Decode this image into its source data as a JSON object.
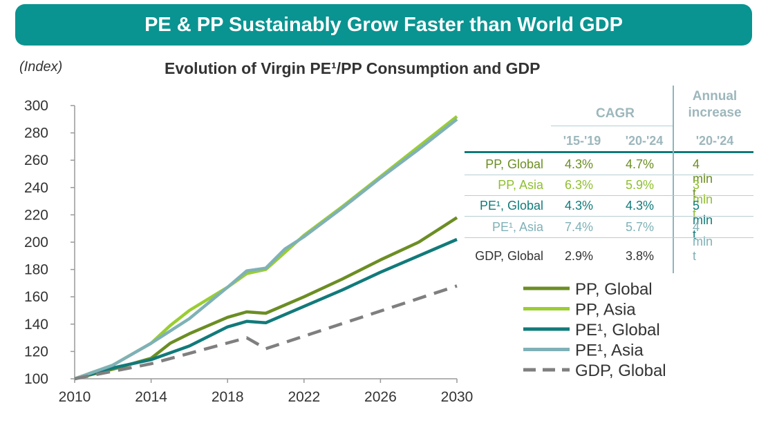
{
  "header": {
    "banner_title": "PE & PP Sustainably Grow Faster than World GDP"
  },
  "chart_data": {
    "type": "line",
    "title": "Evolution of Virgin PE¹/PP Consumption and GDP",
    "ylabel": "(Index)",
    "xlabel": "",
    "xlim": [
      2010,
      2030
    ],
    "ylim": [
      100,
      300
    ],
    "x_ticks": [
      "2010",
      "2014",
      "2018",
      "2022",
      "2026",
      "2030"
    ],
    "y_ticks": [
      "100",
      "120",
      "140",
      "160",
      "180",
      "200",
      "220",
      "240",
      "260",
      "280",
      "300"
    ],
    "grid": false,
    "legend_position": "bottom-right",
    "series": [
      {
        "name": "PP, Global",
        "color": "#6b8e23",
        "dash": false,
        "x": [
          2010,
          2012,
          2014,
          2015,
          2016,
          2018,
          2019,
          2020,
          2022,
          2024,
          2026,
          2028,
          2030
        ],
        "y": [
          100,
          107,
          115,
          126,
          133,
          145,
          149,
          148,
          160,
          173,
          187,
          200,
          218
        ]
      },
      {
        "name": "PP, Asia",
        "color": "#9acd32",
        "dash": false,
        "x": [
          2010,
          2012,
          2014,
          2015,
          2016,
          2018,
          2019,
          2020,
          2022,
          2024,
          2026,
          2028,
          2030
        ],
        "y": [
          100,
          110,
          126,
          139,
          150,
          167,
          177,
          180,
          205,
          226,
          248,
          270,
          292
        ]
      },
      {
        "name": "PE¹, Global",
        "color": "#117a7a",
        "dash": false,
        "x": [
          2010,
          2012,
          2014,
          2016,
          2018,
          2019,
          2020,
          2022,
          2024,
          2026,
          2028,
          2030
        ],
        "y": [
          100,
          108,
          114,
          124,
          138,
          142,
          141,
          153,
          165,
          178,
          190,
          202
        ]
      },
      {
        "name": "PE¹, Asia",
        "color": "#7fb1b7",
        "dash": false,
        "x": [
          2010,
          2012,
          2014,
          2016,
          2018,
          2019,
          2020,
          2021,
          2022,
          2024,
          2026,
          2028,
          2030
        ],
        "y": [
          100,
          110,
          126,
          144,
          167,
          179,
          181,
          195,
          204,
          225,
          247,
          268,
          290
        ]
      },
      {
        "name": "GDP, Global",
        "color": "#7f7f7f",
        "dash": true,
        "x": [
          2010,
          2014,
          2019,
          2020,
          2030
        ],
        "y": [
          100,
          111,
          130,
          122,
          168
        ]
      }
    ],
    "table": {
      "header_cagr": "CAGR",
      "header_annual": "Annual increase",
      "sub_headers": [
        "'15-'19",
        "'20-'24",
        "'20-'24"
      ],
      "rows": [
        {
          "label": "PP, Global",
          "cagr_15_19": "4.3%",
          "cagr_20_24": "4.7%",
          "annual": "4 mln t",
          "color": "#6b8e23"
        },
        {
          "label": "PP, Asia",
          "cagr_15_19": "6.3%",
          "cagr_20_24": "5.9%",
          "annual": "3 mln t",
          "color": "#8fbf2e"
        },
        {
          "label": "PE¹, Global",
          "cagr_15_19": "4.3%",
          "cagr_20_24": "4.3%",
          "annual": "5 mln t",
          "color": "#117a7a"
        },
        {
          "label": "PE¹, Asia",
          "cagr_15_19": "7.4%",
          "cagr_20_24": "5.7%",
          "annual": "4 mln t",
          "color": "#7fb1b7"
        },
        {
          "label": "GDP, Global",
          "cagr_15_19": "2.9%",
          "cagr_20_24": "3.8%",
          "annual": "",
          "color": "#333333"
        }
      ]
    }
  }
}
